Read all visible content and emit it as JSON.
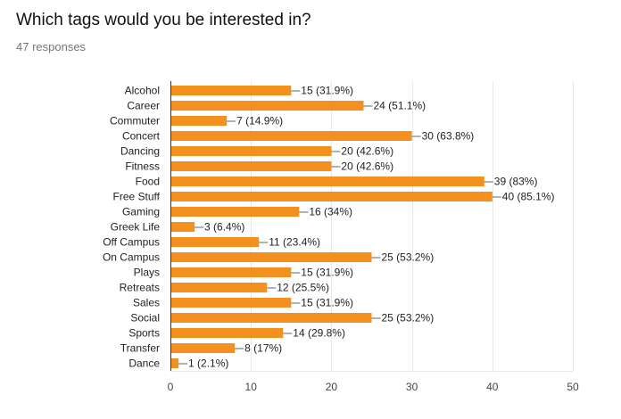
{
  "header": {
    "title": "Which tags would you be interested in?",
    "responses": "47 responses"
  },
  "style": {
    "bar_color": "#F4901E",
    "grid_color": "#E8E8E8",
    "axis_color": "#333333",
    "leader_color": "#666666"
  },
  "chart_data": {
    "type": "bar",
    "orientation": "horizontal",
    "title": "Which tags would you be interested in?",
    "subtitle": "47 responses",
    "xlabel": "",
    "ylabel": "",
    "xlim": [
      0,
      50
    ],
    "xticks": [
      0,
      10,
      20,
      30,
      40,
      50
    ],
    "grid": true,
    "legend": null,
    "categories": [
      "Alcohol",
      "Career",
      "Commuter",
      "Concert",
      "Dancing",
      "Fitness",
      "Food",
      "Free Stuff",
      "Gaming",
      "Greek Life",
      "Off Campus",
      "On Campus",
      "Plays",
      "Retreats",
      "Sales",
      "Social",
      "Sports",
      "Transfer",
      "Dance"
    ],
    "values": [
      15,
      24,
      7,
      30,
      20,
      20,
      39,
      40,
      16,
      3,
      11,
      25,
      15,
      12,
      15,
      25,
      14,
      8,
      1
    ],
    "percents": [
      "31.9%",
      "51.1%",
      "14.9%",
      "63.8%",
      "42.6%",
      "42.6%",
      "83%",
      "85.1%",
      "34%",
      "6.4%",
      "23.4%",
      "53.2%",
      "31.9%",
      "25.5%",
      "31.9%",
      "53.2%",
      "29.8%",
      "17%",
      "2.1%"
    ],
    "data_labels": [
      "15 (31.9%)",
      "24 (51.1%)",
      "7 (14.9%)",
      "30 (63.8%)",
      "20 (42.6%)",
      "20 (42.6%)",
      "39 (83%)",
      "40 (85.1%)",
      "16 (34%)",
      "3 (6.4%)",
      "11 (23.4%)",
      "25 (53.2%)",
      "15 (31.9%)",
      "12 (25.5%)",
      "15 (31.9%)",
      "25 (53.2%)",
      "14 (29.8%)",
      "8 (17%)",
      "1 (2.1%)"
    ]
  }
}
